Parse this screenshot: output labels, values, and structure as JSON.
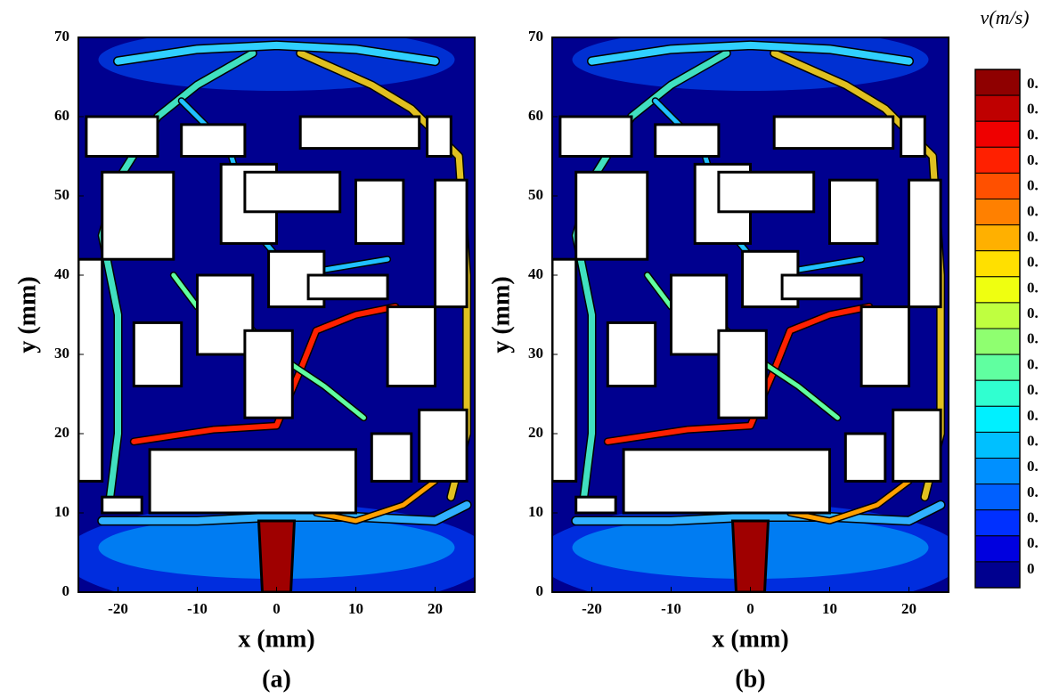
{
  "chart_data": [
    {
      "type": "contour",
      "xlabel": "x (mm)",
      "ylabel": "y (mm)",
      "caption": "(a)",
      "xlim": [
        -25,
        25
      ],
      "ylim": [
        0,
        70
      ],
      "xticks": [
        -20,
        -10,
        0,
        10,
        20
      ],
      "yticks": [
        0,
        10,
        20,
        30,
        40,
        50,
        60,
        70
      ]
    },
    {
      "type": "contour",
      "xlabel": "x (mm)",
      "ylabel": "y (mm)",
      "caption": "(b)",
      "xlim": [
        -25,
        25
      ],
      "ylim": [
        0,
        70
      ],
      "xticks": [
        -20,
        -10,
        0,
        10,
        20
      ],
      "yticks": [
        0,
        10,
        20,
        30,
        40,
        50,
        60,
        70
      ]
    }
  ],
  "colorbar": {
    "label": "v(m/s)",
    "tick_labels": [
      "0.",
      "0.",
      "0.",
      "0.",
      "0.",
      "0.",
      "0.",
      "0.",
      "0.",
      "0.",
      "0.",
      "0.",
      "0.",
      "0.",
      "0.",
      "0.",
      "0.",
      "0.",
      "0.",
      "0"
    ],
    "colors": [
      "#8f0000",
      "#bf0000",
      "#ef0000",
      "#ff2000",
      "#ff5000",
      "#ff8000",
      "#ffb000",
      "#ffe000",
      "#efff10",
      "#bfff40",
      "#8fff70",
      "#60ffa0",
      "#30ffd0",
      "#00f0ff",
      "#00c0ff",
      "#0090ff",
      "#0060ff",
      "#0030ff",
      "#0000df",
      "#00008f"
    ]
  }
}
